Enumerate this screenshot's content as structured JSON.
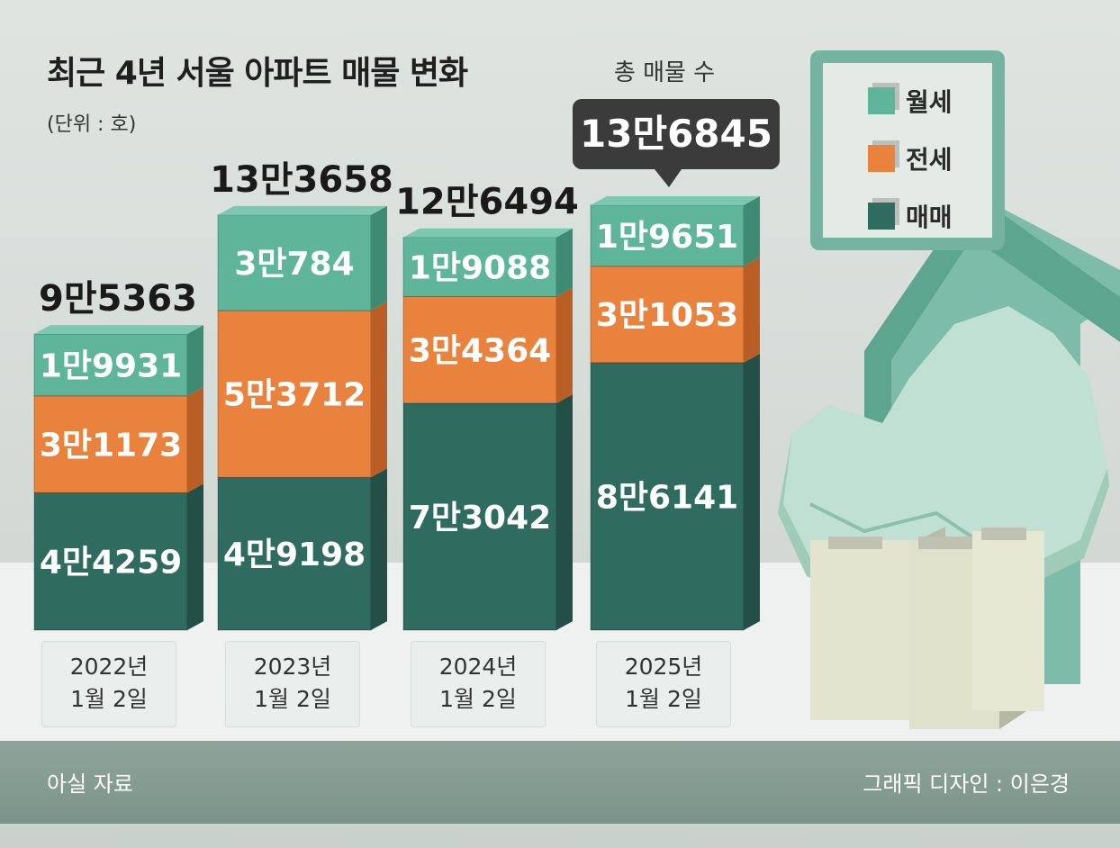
{
  "title": "최근 4년 서울 아파트 매물 변화",
  "unit": "(단위 : 호)",
  "total_caption": "총 매물 수",
  "legend": [
    {
      "label": "월세",
      "color": "#5fb59a"
    },
    {
      "label": "전세",
      "color": "#e9823d"
    },
    {
      "label": "매매",
      "color": "#2f6b5f"
    }
  ],
  "bars": [
    {
      "total": "9만5363",
      "wolse": "1만9931",
      "jeonse": "3만1173",
      "maemae": "4만4259",
      "date_line1": "2022년",
      "date_line2": "1월 2일"
    },
    {
      "total": "13만3658",
      "wolse": "3만784",
      "jeonse": "5만3712",
      "maemae": "4만9198",
      "date_line1": "2023년",
      "date_line2": "1월 2일"
    },
    {
      "total": "12만6494",
      "wolse": "1만9088",
      "jeonse": "3만4364",
      "maemae": "7만3042",
      "date_line1": "2024년",
      "date_line2": "1월 2일"
    },
    {
      "total": "13만6845",
      "wolse": "1만9651",
      "jeonse": "3만1053",
      "maemae": "8만6141",
      "date_line1": "2025년",
      "date_line2": "1월 2일"
    }
  ],
  "source": "아실 자료",
  "credit": "그래픽 디자인 : 이은경",
  "chart_data": {
    "type": "bar",
    "stacked": true,
    "title": "최근 4년 서울 아파트 매물 변화",
    "ylabel": "(단위 : 호)",
    "categories": [
      "2022년 1월 2일",
      "2023년 1월 2일",
      "2024년 1월 2일",
      "2025년 1월 2일"
    ],
    "series": [
      {
        "name": "매매",
        "values": [
          44259,
          49198,
          73042,
          86141
        ],
        "color": "#2f6b5f"
      },
      {
        "name": "전세",
        "values": [
          31173,
          53712,
          34364,
          31053
        ],
        "color": "#e9823d"
      },
      {
        "name": "월세",
        "values": [
          19931,
          30784,
          19088,
          19651
        ],
        "color": "#5fb59a"
      }
    ],
    "totals": [
      95363,
      133658,
      126494,
      136845
    ],
    "legend_position": "top-right"
  }
}
